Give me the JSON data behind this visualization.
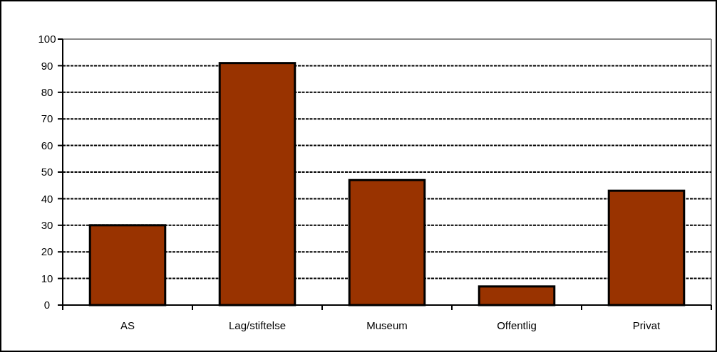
{
  "chart_data": {
    "type": "bar",
    "categories": [
      "AS",
      "Lag/stiftelse",
      "Museum",
      "Offentlig",
      "Privat"
    ],
    "values": [
      30,
      91,
      47,
      7,
      43
    ],
    "color": "#993300",
    "ylim": [
      0,
      100
    ],
    "yticks": [
      0,
      10,
      20,
      30,
      40,
      50,
      60,
      70,
      80,
      90,
      100
    ],
    "grid": "y"
  }
}
